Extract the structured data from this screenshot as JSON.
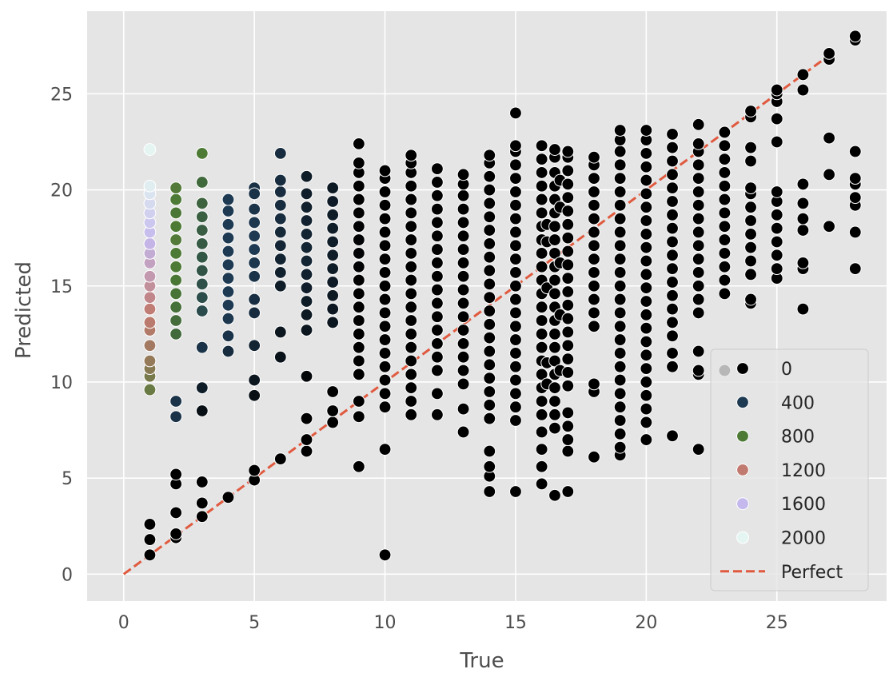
{
  "chart_data": {
    "type": "scatter",
    "title": "",
    "xlabel": "True",
    "ylabel": "Predicted",
    "xlim": [
      -1.4,
      29.2
    ],
    "ylim": [
      -1.4,
      29.3
    ],
    "xticks": [
      0,
      5,
      10,
      15,
      20,
      25
    ],
    "yticks": [
      0,
      5,
      10,
      15,
      20,
      25
    ],
    "grid": true,
    "hue_legend_title": "",
    "legend_position": "lower-right",
    "hue_scale": {
      "stops": [
        {
          "v": 0,
          "color": "#000000"
        },
        {
          "v": 400,
          "color": "#1e3a52"
        },
        {
          "v": 800,
          "color": "#4d7a35"
        },
        {
          "v": 1200,
          "color": "#c07a70"
        },
        {
          "v": 1600,
          "color": "#c4b8ec"
        },
        {
          "v": 2000,
          "color": "#e4f5f2"
        }
      ]
    },
    "legend": [
      {
        "label": "0",
        "color": "#000000",
        "kind": "marker"
      },
      {
        "label": "400",
        "color": "#1e3a52",
        "kind": "marker"
      },
      {
        "label": "800",
        "color": "#4d7a35",
        "kind": "marker"
      },
      {
        "label": "1200",
        "color": "#c07a70",
        "kind": "marker"
      },
      {
        "label": "1600",
        "color": "#c4b8ec",
        "kind": "marker"
      },
      {
        "label": "2000",
        "color": "#e4f5f2",
        "kind": "marker"
      },
      {
        "label": "Perfect",
        "color": "#e05a3f",
        "kind": "dashed-line"
      }
    ],
    "reference_line": {
      "name": "Perfect",
      "x": [
        0,
        27
      ],
      "y": [
        0,
        27
      ],
      "color": "#e05a3f"
    },
    "series": [
      {
        "x": 1,
        "y": [
          1.0,
          1.8,
          2.6,
          9.6,
          10.3,
          10.7,
          11.1,
          11.9,
          12.7,
          13.1,
          13.8,
          14.4,
          15.0,
          15.5,
          16.2,
          16.7,
          17.2,
          17.8,
          18.3,
          18.8,
          19.3,
          19.8,
          20.2,
          22.1
        ],
        "hue": [
          0,
          0,
          0,
          900,
          950,
          1000,
          1050,
          1100,
          1150,
          1180,
          1220,
          1280,
          1340,
          1400,
          1460,
          1520,
          1580,
          1640,
          1700,
          1760,
          1820,
          1880,
          1950,
          2050
        ]
      },
      {
        "x": 2,
        "y": [
          1.9,
          2.1,
          3.2,
          4.7,
          5.2,
          8.2,
          9.0,
          12.5,
          13.2,
          13.9,
          14.6,
          15.3,
          16.0,
          16.7,
          17.4,
          18.1,
          18.8,
          19.5,
          20.1
        ],
        "hue": [
          0,
          0,
          0,
          0,
          0,
          350,
          350,
          700,
          720,
          740,
          760,
          780,
          800,
          800,
          820,
          800,
          780,
          800,
          820
        ]
      },
      {
        "x": 3,
        "y": [
          3.0,
          3.7,
          4.8,
          8.5,
          9.7,
          11.8,
          13.7,
          14.4,
          15.1,
          15.8,
          16.5,
          17.2,
          17.9,
          18.6,
          19.3,
          20.4,
          21.9
        ],
        "hue": [
          0,
          0,
          0,
          100,
          200,
          350,
          500,
          520,
          540,
          560,
          580,
          600,
          620,
          640,
          660,
          700,
          800
        ]
      },
      {
        "x": 4,
        "y": [
          4.0,
          11.6,
          12.4,
          13.3,
          14.0,
          14.7,
          15.4,
          16.1,
          16.8,
          17.5,
          18.2,
          18.9,
          19.5
        ],
        "hue": [
          0,
          300,
          350,
          380,
          400,
          400,
          400,
          400,
          400,
          400,
          400,
          400,
          400
        ]
      },
      {
        "x": 5,
        "y": [
          4.9,
          5.4,
          9.3,
          10.1,
          11.9,
          13.6,
          14.3,
          15.5,
          16.2,
          16.9,
          17.6,
          18.3,
          19.0,
          19.8,
          20.1
        ],
        "hue": [
          0,
          0,
          100,
          150,
          250,
          300,
          320,
          350,
          380,
          400,
          400,
          380,
          360,
          350,
          340
        ]
      },
      {
        "x": 6,
        "y": [
          6.0,
          11.3,
          12.6,
          15.0,
          15.7,
          16.4,
          17.1,
          17.8,
          18.5,
          19.2,
          19.9,
          20.5,
          21.9
        ],
        "hue": [
          0,
          120,
          150,
          200,
          220,
          240,
          260,
          280,
          300,
          300,
          300,
          300,
          300
        ]
      },
      {
        "x": 7,
        "y": [
          6.4,
          7.0,
          8.1,
          10.3,
          12.7,
          13.5,
          14.2,
          14.9,
          15.6,
          16.3,
          17.0,
          17.7,
          18.4,
          19.1,
          19.8,
          20.7
        ],
        "hue": [
          0,
          0,
          0,
          50,
          150,
          170,
          190,
          210,
          230,
          250,
          250,
          250,
          230,
          220,
          210,
          200
        ]
      },
      {
        "x": 8,
        "y": [
          7.9,
          8.5,
          9.5,
          13.1,
          13.8,
          14.5,
          15.2,
          15.9,
          16.6,
          17.3,
          18.0,
          18.7,
          19.4,
          20.1
        ],
        "hue": [
          0,
          0,
          0,
          150,
          160,
          170,
          180,
          190,
          200,
          200,
          200,
          190,
          180,
          170
        ]
      },
      {
        "x": 9,
        "y": [
          5.6,
          8.2,
          9.0,
          10.4,
          11.1,
          11.8,
          12.5,
          13.2,
          13.9,
          14.6,
          15.3,
          16.0,
          16.7,
          17.4,
          18.1,
          18.8,
          19.5,
          20.2,
          20.9,
          21.4,
          22.4
        ],
        "hue": [
          0,
          0,
          0,
          0,
          0,
          0,
          0,
          10,
          10,
          10,
          10,
          20,
          20,
          20,
          20,
          10,
          10,
          10,
          0,
          0,
          0
        ]
      },
      {
        "x": 10,
        "y": [
          1.0,
          6.5,
          8.7,
          9.4,
          10.1,
          10.8,
          11.5,
          12.2,
          12.9,
          13.6,
          14.3,
          15.0,
          15.7,
          16.4,
          17.1,
          17.8,
          18.5,
          19.2,
          19.9,
          20.6,
          21.0
        ],
        "hue": [
          0,
          0,
          0,
          0,
          0,
          0,
          0,
          0,
          0,
          0,
          0,
          0,
          0,
          0,
          0,
          0,
          0,
          0,
          0,
          0,
          0
        ]
      },
      {
        "x": 11,
        "y": [
          8.3,
          9.0,
          9.7,
          10.4,
          11.1,
          11.8,
          12.5,
          13.2,
          13.9,
          14.6,
          15.3,
          16.0,
          16.7,
          17.4,
          18.1,
          18.8,
          19.5,
          20.2,
          20.9,
          21.4,
          21.8
        ],
        "hue": [
          0,
          0,
          0,
          0,
          0,
          0,
          0,
          0,
          0,
          0,
          0,
          0,
          0,
          0,
          0,
          0,
          0,
          0,
          0,
          0,
          0
        ]
      },
      {
        "x": 12,
        "y": [
          8.3,
          9.4,
          10.6,
          11.3,
          12.0,
          12.7,
          13.4,
          14.1,
          14.8,
          15.5,
          16.2,
          16.9,
          17.6,
          18.3,
          19.0,
          19.7,
          20.4,
          21.1
        ],
        "hue": [
          0,
          0,
          0,
          0,
          0,
          0,
          0,
          0,
          0,
          0,
          0,
          0,
          0,
          0,
          0,
          0,
          0,
          0
        ]
      },
      {
        "x": 13,
        "y": [
          7.4,
          8.6,
          9.9,
          10.6,
          11.3,
          12.0,
          12.7,
          13.4,
          14.1,
          14.8,
          15.5,
          16.2,
          16.9,
          17.6,
          18.3,
          19.0,
          19.7,
          20.3,
          20.8
        ],
        "hue": [
          0,
          0,
          0,
          0,
          0,
          0,
          0,
          0,
          0,
          0,
          0,
          0,
          0,
          0,
          0,
          0,
          0,
          0,
          0
        ]
      },
      {
        "x": 14,
        "y": [
          4.3,
          5.1,
          5.6,
          6.4,
          8.1,
          8.8,
          9.5,
          10.2,
          10.9,
          11.6,
          12.3,
          13.0,
          13.7,
          14.4,
          15.1,
          15.8,
          16.5,
          17.2,
          17.9,
          18.6,
          19.3,
          20.0,
          20.7,
          21.4,
          21.8
        ],
        "hue": [
          0,
          0,
          0,
          0,
          0,
          0,
          0,
          0,
          0,
          0,
          0,
          0,
          0,
          0,
          0,
          0,
          0,
          0,
          0,
          0,
          0,
          0,
          0,
          0,
          0
        ]
      },
      {
        "x": 15,
        "y": [
          4.3,
          8.0,
          8.7,
          9.4,
          10.1,
          10.8,
          11.5,
          12.2,
          12.9,
          13.6,
          14.3,
          15.0,
          15.7,
          16.4,
          17.1,
          17.8,
          18.5,
          19.2,
          19.9,
          20.6,
          21.3,
          22.0,
          22.3,
          24.0
        ],
        "hue": [
          0,
          0,
          0,
          0,
          0,
          0,
          0,
          0,
          0,
          0,
          0,
          0,
          0,
          0,
          0,
          0,
          0,
          0,
          0,
          0,
          0,
          0,
          0,
          0
        ]
      },
      {
        "x": 16,
        "y": [
          4.7,
          5.6,
          6.5,
          7.4,
          8.3,
          9.0,
          9.7,
          10.4,
          11.1,
          11.8,
          12.5,
          13.2,
          13.9,
          14.6,
          15.3,
          16.0,
          16.7,
          17.4,
          18.1,
          18.8,
          19.5,
          20.2,
          20.9,
          21.6,
          22.3
        ],
        "hue": [
          0,
          0,
          0,
          0,
          0,
          0,
          0,
          0,
          0,
          0,
          0,
          0,
          0,
          0,
          0,
          0,
          0,
          0,
          0,
          0,
          0,
          0,
          0,
          0,
          0
        ]
      },
      {
        "x": 16.2,
        "y": [
          9.9,
          11.0,
          14.9,
          17.3,
          18.2
        ],
        "hue": [
          0,
          0,
          0,
          0,
          0
        ]
      },
      {
        "x": 16.5,
        "y": [
          4.1,
          7.6,
          8.3,
          9.0,
          9.7,
          10.4,
          11.1,
          11.8,
          12.5,
          13.2,
          13.9,
          14.6,
          15.3,
          16.0,
          16.7,
          17.4,
          18.1,
          18.8,
          19.5,
          20.2,
          20.9,
          21.7,
          22.1
        ],
        "hue": [
          0,
          0,
          0,
          0,
          0,
          0,
          0,
          0,
          0,
          0,
          0,
          0,
          0,
          0,
          0,
          0,
          0,
          0,
          0,
          0,
          0,
          0,
          0
        ]
      },
      {
        "x": 16.7,
        "y": [
          10.6,
          13.5,
          16.2,
          19.1,
          20.5
        ],
        "hue": [
          0,
          0,
          0,
          0,
          0
        ]
      },
      {
        "x": 17,
        "y": [
          4.3,
          6.4,
          7.0,
          7.7,
          8.4,
          9.8,
          10.5,
          11.2,
          11.9,
          12.6,
          13.3,
          14.0,
          14.7,
          15.4,
          16.1,
          16.8,
          17.5,
          18.2,
          18.9,
          19.6,
          20.3,
          21.0,
          21.7,
          22.0
        ],
        "hue": [
          0,
          0,
          0,
          0,
          0,
          0,
          0,
          0,
          0,
          0,
          0,
          0,
          0,
          0,
          0,
          0,
          0,
          0,
          0,
          0,
          0,
          0,
          0,
          0
        ]
      },
      {
        "x": 18,
        "y": [
          6.1,
          9.5,
          9.9,
          12.9,
          13.6,
          14.3,
          15.0,
          15.7,
          16.4,
          17.1,
          17.8,
          18.5,
          19.2,
          19.9,
          20.6,
          21.3,
          21.7
        ],
        "hue": [
          0,
          0,
          0,
          0,
          0,
          0,
          0,
          0,
          0,
          0,
          0,
          0,
          0,
          0,
          0,
          0,
          0
        ]
      },
      {
        "x": 19,
        "y": [
          6.2,
          6.6,
          7.3,
          8.0,
          8.7,
          9.4,
          10.1,
          10.8,
          11.5,
          12.2,
          12.9,
          13.6,
          14.3,
          15.0,
          15.7,
          16.4,
          17.1,
          17.8,
          18.5,
          19.2,
          19.9,
          20.6,
          21.3,
          22.0,
          22.6,
          23.1
        ],
        "hue": [
          0,
          0,
          0,
          0,
          0,
          0,
          0,
          0,
          0,
          0,
          0,
          0,
          0,
          0,
          0,
          0,
          0,
          0,
          0,
          0,
          0,
          0,
          0,
          0,
          0,
          0
        ]
      },
      {
        "x": 20,
        "y": [
          7.0,
          7.9,
          8.6,
          9.3,
          10.0,
          10.7,
          11.4,
          12.1,
          12.8,
          13.5,
          14.2,
          14.9,
          15.6,
          16.3,
          17.0,
          17.7,
          18.4,
          19.1,
          19.8,
          20.5,
          21.2,
          21.9,
          22.6,
          23.1
        ],
        "hue": [
          0,
          0,
          0,
          0,
          0,
          0,
          0,
          0,
          0,
          0,
          0,
          0,
          0,
          0,
          0,
          0,
          0,
          0,
          0,
          0,
          0,
          0,
          0,
          0
        ]
      },
      {
        "x": 21,
        "y": [
          7.2,
          10.8,
          11.5,
          12.4,
          13.1,
          13.8,
          14.5,
          15.2,
          15.9,
          16.6,
          17.3,
          18.0,
          18.7,
          19.4,
          20.1,
          20.8,
          21.5,
          22.2,
          22.9
        ],
        "hue": [
          0,
          0,
          0,
          0,
          0,
          0,
          0,
          0,
          0,
          0,
          0,
          0,
          0,
          0,
          0,
          0,
          0,
          0,
          0
        ]
      },
      {
        "x": 22,
        "y": [
          6.5,
          10.4,
          10.6,
          11.6,
          13.6,
          14.3,
          15.0,
          15.7,
          16.4,
          17.1,
          17.8,
          18.5,
          19.2,
          19.9,
          20.6,
          21.3,
          22.0,
          22.4,
          23.4
        ],
        "hue": [
          0,
          0,
          0,
          0,
          0,
          0,
          0,
          0,
          0,
          0,
          0,
          0,
          0,
          0,
          0,
          0,
          0,
          0,
          0
        ]
      },
      {
        "x": 23,
        "y": [
          10.6,
          14.6,
          15.3,
          16.0,
          16.7,
          17.4,
          18.1,
          18.8,
          19.5,
          20.2,
          20.9,
          21.6,
          22.3,
          23.0
        ],
        "hue": [
          0,
          0,
          0,
          0,
          0,
          0,
          0,
          0,
          0,
          0,
          0,
          0,
          0,
          0
        ]
      },
      {
        "x": 24,
        "y": [
          14.1,
          14.3,
          15.6,
          16.3,
          17.0,
          17.7,
          18.4,
          19.1,
          19.8,
          20.1,
          21.5,
          22.2,
          23.8,
          24.1
        ],
        "hue": [
          0,
          0,
          0,
          0,
          0,
          0,
          0,
          0,
          0,
          0,
          0,
          0,
          0,
          0
        ]
      },
      {
        "x": 25,
        "y": [
          15.4,
          15.9,
          16.6,
          17.3,
          18.0,
          18.7,
          19.4,
          19.9,
          22.5,
          23.7,
          24.6,
          25.0,
          25.2
        ],
        "hue": [
          0,
          0,
          0,
          0,
          0,
          0,
          0,
          0,
          0,
          0,
          0,
          0,
          0
        ]
      },
      {
        "x": 26,
        "y": [
          13.8,
          15.9,
          16.2,
          17.9,
          18.5,
          19.3,
          20.3,
          25.2,
          26.0
        ],
        "hue": [
          0,
          0,
          0,
          0,
          0,
          0,
          0,
          0,
          0
        ]
      },
      {
        "x": 27,
        "y": [
          18.1,
          20.8,
          22.7,
          26.8,
          27.1
        ],
        "hue": [
          0,
          0,
          0,
          0,
          0
        ]
      },
      {
        "x": 28,
        "y": [
          15.9,
          17.8,
          19.2,
          19.6,
          20.3,
          20.6,
          22.0,
          27.8,
          28.0
        ],
        "hue": [
          0,
          0,
          0,
          0,
          0,
          0,
          0,
          0,
          0
        ]
      }
    ]
  }
}
